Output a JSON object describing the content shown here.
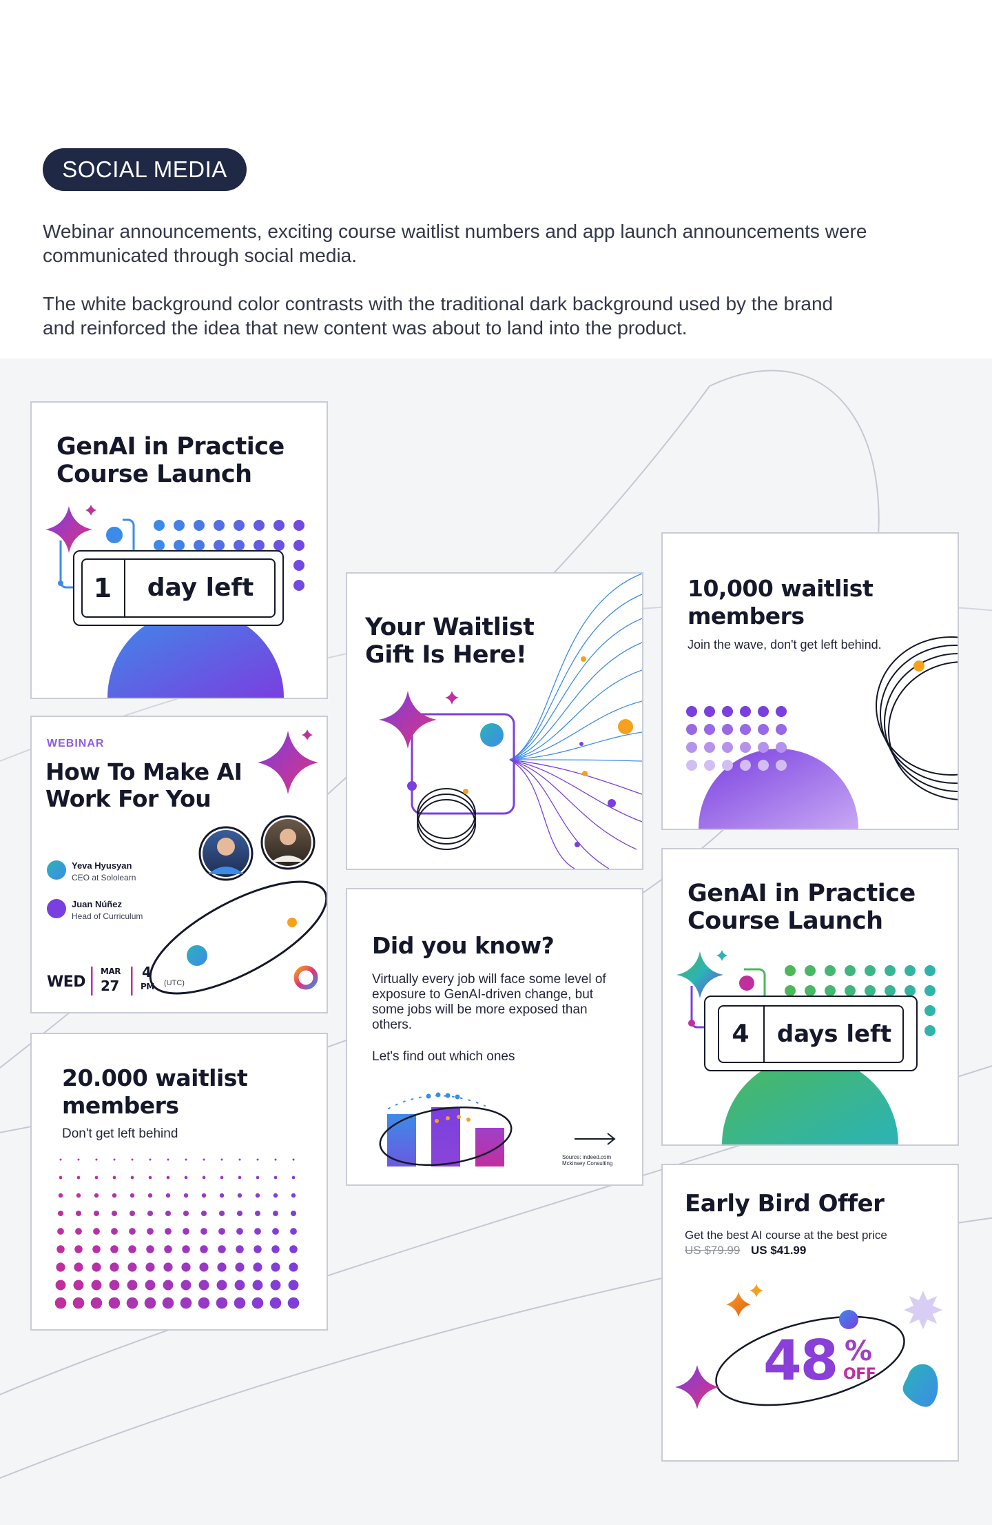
{
  "section": {
    "badge": "SOCIAL MEDIA",
    "paragraph_1": "Webinar announcements, exciting course waitlist numbers and app launch announcements were communicated through social media.",
    "paragraph_2": "The white background color contrasts with the traditional dark background used by the brand and reinforced the idea that new content was about to land into the product."
  },
  "cards": {
    "launch_1": {
      "title": "GenAI in Practice Course Launch",
      "count": "1",
      "unit": "day left"
    },
    "waitlist_gift": {
      "title": "Your Waitlist Gift Is Here!"
    },
    "waitlist_10k": {
      "title": "10,000 waitlist members",
      "subtitle": "Join the wave, don't get left behind."
    },
    "webinar": {
      "tag": "WEBINAR",
      "title": "How To Make AI Work For You",
      "speakers": [
        {
          "name": "Yeva Hyusyan",
          "role": "CEO at Sololearn"
        },
        {
          "name": "Juan Núñez",
          "role": "Head of Curriculum"
        }
      ],
      "day": "WED",
      "month": "MAR",
      "date": "27",
      "hour": "4",
      "ampm": "PM",
      "timezone": "(UTC)"
    },
    "did_you_know": {
      "title": "Did you know?",
      "body": "Virtually every job will face some level of exposure to GenAI-driven change, but some jobs will be more exposed than others.",
      "cta": "Let's find out which ones",
      "source_1": "Source: indeed.com",
      "source_2": "Mckinsey Consulting"
    },
    "launch_4": {
      "title": "GenAI in Practice Course Launch",
      "count": "4",
      "unit": "days left"
    },
    "waitlist_20k": {
      "title": "20.000 waitlist members",
      "subtitle": "Don't get left behind"
    },
    "early_bird": {
      "title": "Early Bird Offer",
      "subtitle": "Get the best AI course at the best price",
      "old_price": "US $79.99",
      "new_price": "US $41.99",
      "discount": "48",
      "percent": "%",
      "off": "OFF"
    }
  },
  "colors": {
    "navy": "#1f2845",
    "purple": "#7a3fe0",
    "magenta": "#c02f9e",
    "blue": "#3d8be8",
    "orange": "#f5a11c",
    "green": "#4cb85a",
    "teal": "#2bb3b7"
  }
}
